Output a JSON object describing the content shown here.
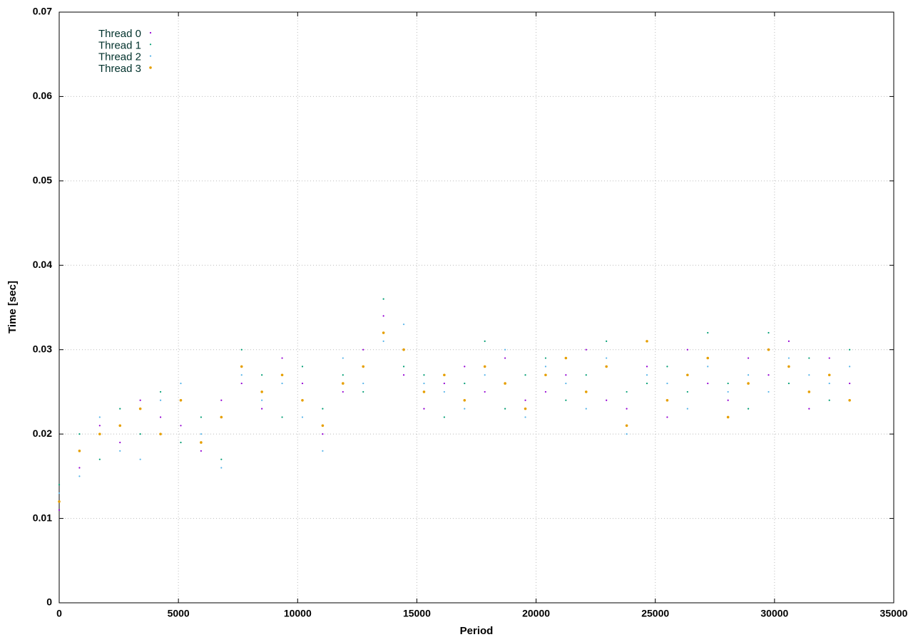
{
  "chart_data": {
    "type": "scatter",
    "x_label": "Period",
    "y_label": "Time [sec]",
    "xlim": [
      0,
      35000
    ],
    "ylim": [
      0,
      0.07
    ],
    "xticks": [
      0,
      5000,
      10000,
      15000,
      20000,
      25000,
      30000,
      35000
    ],
    "yticks": [
      0,
      0.01,
      0.02,
      0.03,
      0.04,
      0.05,
      0.06,
      0.07
    ],
    "grid": true,
    "legend": "top-left",
    "x": [
      0,
      850,
      1700,
      2550,
      3400,
      4250,
      5100,
      5950,
      6800,
      7650,
      8500,
      9350,
      10200,
      11050,
      11900,
      12750,
      13600,
      14450,
      15300,
      16150,
      17000,
      17850,
      18700,
      19550,
      20400,
      21250,
      22100,
      22950,
      23800,
      24650,
      25500,
      26350,
      27200,
      28050,
      28900,
      29750,
      30600,
      31450,
      32300,
      33150
    ],
    "series": [
      {
        "name": "Thread 0",
        "color": "#9400d3",
        "values": [
          0.011,
          0.016,
          0.021,
          0.019,
          0.024,
          0.022,
          0.021,
          0.018,
          0.024,
          0.026,
          0.023,
          0.029,
          0.026,
          0.02,
          0.025,
          0.03,
          0.034,
          0.027,
          0.023,
          0.026,
          0.028,
          0.025,
          0.029,
          0.024,
          0.025,
          0.027,
          0.03,
          0.024,
          0.023,
          0.028,
          0.022,
          0.03,
          0.026,
          0.024,
          0.029,
          0.027,
          0.031,
          0.023,
          0.029,
          0.026
        ]
      },
      {
        "name": "Thread 1",
        "color": "#009e73",
        "values": [
          0.014,
          0.02,
          0.017,
          0.023,
          0.02,
          0.025,
          0.019,
          0.022,
          0.017,
          0.03,
          0.027,
          0.022,
          0.028,
          0.023,
          0.027,
          0.025,
          0.036,
          0.028,
          0.027,
          0.022,
          0.026,
          0.031,
          0.023,
          0.027,
          0.029,
          0.024,
          0.027,
          0.031,
          0.025,
          0.026,
          0.028,
          0.025,
          0.032,
          0.026,
          0.023,
          0.032,
          0.026,
          0.029,
          0.024,
          0.03
        ]
      },
      {
        "name": "Thread 2",
        "color": "#56b4e9",
        "values": [
          0.013,
          0.015,
          0.022,
          0.018,
          0.017,
          0.024,
          0.026,
          0.02,
          0.016,
          0.027,
          0.024,
          0.026,
          0.022,
          0.018,
          0.029,
          0.026,
          0.031,
          0.033,
          0.026,
          0.025,
          0.023,
          0.027,
          0.03,
          0.022,
          0.028,
          0.026,
          0.023,
          0.029,
          0.02,
          0.027,
          0.026,
          0.023,
          0.028,
          0.025,
          0.027,
          0.025,
          0.029,
          0.027,
          0.026,
          0.028
        ]
      },
      {
        "name": "Thread 3",
        "color": "#e69f00",
        "values": [
          0.012,
          0.018,
          0.02,
          0.021,
          0.023,
          0.02,
          0.024,
          0.019,
          0.022,
          0.028,
          0.025,
          0.027,
          0.024,
          0.021,
          0.026,
          0.028,
          0.032,
          0.03,
          0.025,
          0.027,
          0.024,
          0.028,
          0.026,
          0.023,
          0.027,
          0.029,
          0.025,
          0.028,
          0.021,
          0.031,
          0.024,
          0.027,
          0.029,
          0.022,
          0.026,
          0.03,
          0.028,
          0.025,
          0.027,
          0.024
        ]
      }
    ]
  }
}
